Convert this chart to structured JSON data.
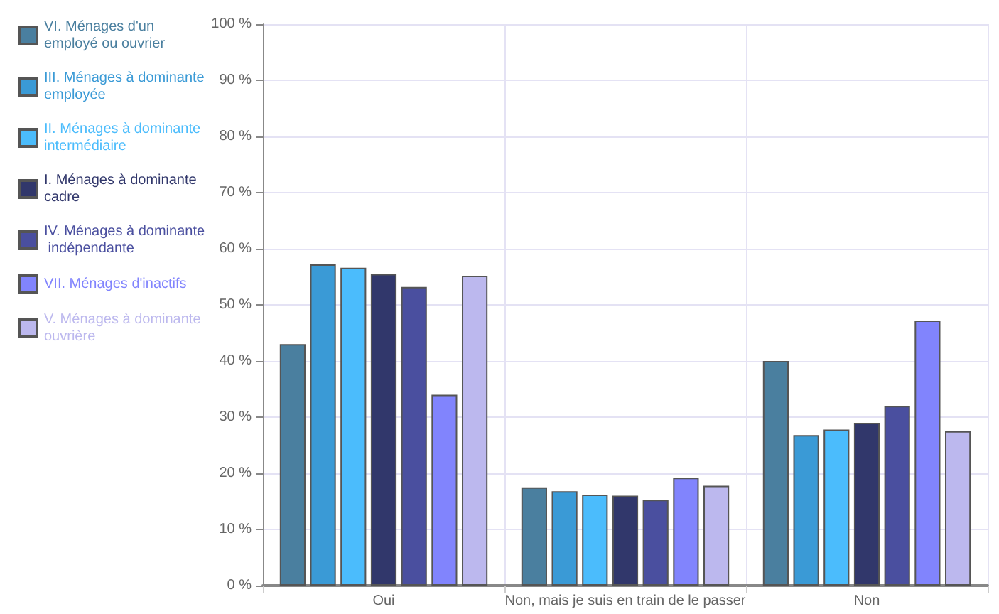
{
  "chart_data": {
    "type": "bar",
    "categories": [
      "Oui",
      "Non, mais je suis en train de le passer",
      "Non"
    ],
    "series": [
      {
        "name": "VI. Ménages d'un employé ou ouvrier",
        "color": "#4a7f9f",
        "values": [
          43,
          17.5,
          40
        ]
      },
      {
        "name": "III. Ménages à dominante employée",
        "color": "#3a9ad6",
        "values": [
          57.2,
          16.8,
          26.8
        ]
      },
      {
        "name": "II. Ménages à dominante intermédiaire",
        "color": "#4bbcfc",
        "values": [
          56.6,
          16.2,
          27.8
        ]
      },
      {
        "name": "I. Ménages à dominante cadre",
        "color": "#31376b",
        "values": [
          55.5,
          16,
          29
        ]
      },
      {
        "name": "IV. Ménages à dominante indépendante",
        "color": "#4a4f9f",
        "values": [
          53.2,
          15.3,
          32
        ]
      },
      {
        "name": "VII. Ménages d'inactifs",
        "color": "#8184fd",
        "values": [
          34,
          19.2,
          47.2
        ]
      },
      {
        "name": "V. Ménages à dominante ouvrière",
        "color": "#bcb8ee",
        "values": [
          55.2,
          17.8,
          27.5
        ]
      }
    ],
    "ylim": [
      0,
      100
    ],
    "yticks": [
      {
        "value": 0,
        "label": "0 %"
      },
      {
        "value": 10,
        "label": "10 %"
      },
      {
        "value": 20,
        "label": "20 %"
      },
      {
        "value": 30,
        "label": "30 %"
      },
      {
        "value": 40,
        "label": "40 %"
      },
      {
        "value": 50,
        "label": "50 %"
      },
      {
        "value": 60,
        "label": "60 %"
      },
      {
        "value": 70,
        "label": "70 %"
      },
      {
        "value": 80,
        "label": "80 %"
      },
      {
        "value": 90,
        "label": "90 %"
      },
      {
        "value": 100,
        "label": "100 %"
      }
    ],
    "grid": true,
    "legend": "left"
  }
}
